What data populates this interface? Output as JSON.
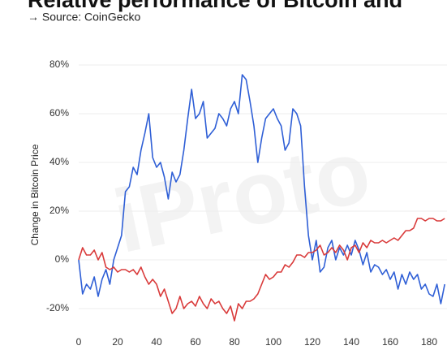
{
  "chart_data": {
    "type": "line",
    "title": "Relative performance of Bitcoin and",
    "subtitle": "→ Source: CoinGecko",
    "y_label": "Change in Bitcoin Price",
    "watermark": "iProto",
    "x": [
      0,
      2,
      4,
      6,
      8,
      10,
      12,
      14,
      16,
      18,
      20,
      22,
      24,
      26,
      28,
      30,
      32,
      34,
      36,
      38,
      40,
      42,
      44,
      46,
      48,
      50,
      52,
      54,
      56,
      58,
      60,
      62,
      64,
      66,
      68,
      70,
      72,
      74,
      76,
      78,
      80,
      82,
      84,
      86,
      88,
      90,
      92,
      94,
      96,
      98,
      100,
      102,
      104,
      106,
      108,
      110,
      112,
      114,
      116,
      118,
      120,
      122,
      124,
      126,
      128,
      130,
      132,
      134,
      136,
      138,
      140,
      142,
      144,
      146,
      148,
      150,
      152,
      154,
      156,
      158,
      160,
      162,
      164,
      166,
      168,
      170,
      172,
      174,
      176,
      178,
      180,
      182,
      184,
      186,
      188
    ],
    "series": [
      {
        "color": "#2f5fd6",
        "values": [
          0,
          -14,
          -10,
          -12,
          -7,
          -15,
          -8,
          -4,
          -10,
          0,
          5,
          10,
          28,
          30,
          38,
          35,
          45,
          52,
          60,
          42,
          38,
          40,
          34,
          25,
          36,
          32,
          35,
          45,
          58,
          70,
          58,
          60,
          65,
          50,
          52,
          54,
          60,
          58,
          55,
          62,
          65,
          60,
          76,
          74,
          65,
          55,
          40,
          50,
          58,
          60,
          62,
          58,
          55,
          45,
          48,
          62,
          60,
          55,
          30,
          10,
          0,
          8,
          -5,
          -3,
          5,
          8,
          0,
          5,
          2,
          6,
          2,
          8,
          4,
          -2,
          3,
          -5,
          -2,
          -3,
          -6,
          -4,
          -8,
          -5,
          -12,
          -6,
          -10,
          -5,
          -8,
          -6,
          -12,
          -10,
          -14,
          -15,
          -10,
          -18,
          -10
        ]
      },
      {
        "color": "#d93a3a",
        "values": [
          0,
          5,
          2,
          2,
          4,
          0,
          3,
          -3,
          -4,
          -3,
          -5,
          -4,
          -4,
          -5,
          -4,
          -6,
          -3,
          -7,
          -10,
          -8,
          -10,
          -15,
          -12,
          -17,
          -22,
          -20,
          -15,
          -20,
          -18,
          -17,
          -19,
          -15,
          -18,
          -20,
          -16,
          -18,
          -17,
          -20,
          -22,
          -19,
          -25,
          -18,
          -20,
          -17,
          -17,
          -16,
          -14,
          -10,
          -6,
          -8,
          -7,
          -5,
          -5,
          -2,
          -3,
          -1,
          2,
          2,
          1,
          3,
          3,
          4,
          6,
          2,
          3,
          5,
          3,
          6,
          4,
          0,
          5,
          6,
          3,
          7,
          5,
          8,
          7,
          7,
          8,
          7,
          8,
          9,
          8,
          10,
          12,
          12,
          13,
          17,
          17,
          16,
          17,
          17,
          16,
          16,
          17
        ]
      }
    ],
    "xlim": [
      0,
      189
    ],
    "xticks": [
      0,
      20,
      40,
      60,
      80,
      100,
      120,
      140,
      160,
      180
    ],
    "ylim": [
      -28,
      87
    ],
    "yticks": [
      {
        "value": -20,
        "label": "-20%"
      },
      {
        "value": 0,
        "label": "0%"
      },
      {
        "value": 20,
        "label": "20%"
      },
      {
        "value": 40,
        "label": "40%"
      },
      {
        "value": 60,
        "label": "60%"
      },
      {
        "value": 80,
        "label": "80%"
      }
    ],
    "grid": true
  }
}
